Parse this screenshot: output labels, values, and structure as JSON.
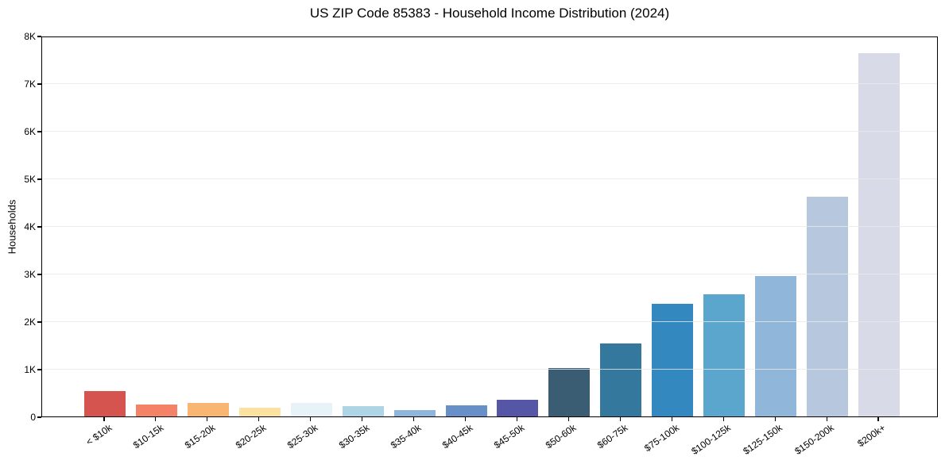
{
  "chart_data": {
    "type": "bar",
    "title": "US ZIP Code 85383 - Household Income Distribution (2024)",
    "xlabel": "",
    "ylabel": "Households",
    "ylim": [
      0,
      8000
    ],
    "grid": "horizontal-light",
    "legend_position": "none",
    "categories": [
      "< $10k",
      "$10-15k",
      "$15-20k",
      "$20-25k",
      "$25-30k",
      "$30-35k",
      "$35-40k",
      "$40-45k",
      "$45-50k",
      "$50-60k",
      "$60-75k",
      "$75-100k",
      "$100-125k",
      "$125-150k",
      "$150-200k",
      "$200k+"
    ],
    "values": [
      540,
      255,
      290,
      185,
      280,
      215,
      140,
      240,
      355,
      1020,
      1540,
      2360,
      2570,
      2950,
      4620,
      7630
    ],
    "bar_colors": [
      "#d6544f",
      "#f48266",
      "#f9b572",
      "#fce2a0",
      "#e7f3f9",
      "#aed4e6",
      "#8db6da",
      "#6690c7",
      "#5557a6",
      "#3a5d73",
      "#35789d",
      "#3389bf",
      "#5ba6cc",
      "#90b6da",
      "#b7c8de",
      "#d8dae8"
    ],
    "yticks": [
      {
        "v": 0,
        "label": "0"
      },
      {
        "v": 1000,
        "label": "1K"
      },
      {
        "v": 2000,
        "label": "2K"
      },
      {
        "v": 3000,
        "label": "3K"
      },
      {
        "v": 4000,
        "label": "4K"
      },
      {
        "v": 5000,
        "label": "5K"
      },
      {
        "v": 6000,
        "label": "6K"
      },
      {
        "v": 7000,
        "label": "7K"
      },
      {
        "v": 8000,
        "label": "8K"
      }
    ]
  },
  "colors": {
    "background": "#ffffff",
    "grid": "#e9e9e9",
    "axis": "#000000",
    "text": "#000000"
  }
}
